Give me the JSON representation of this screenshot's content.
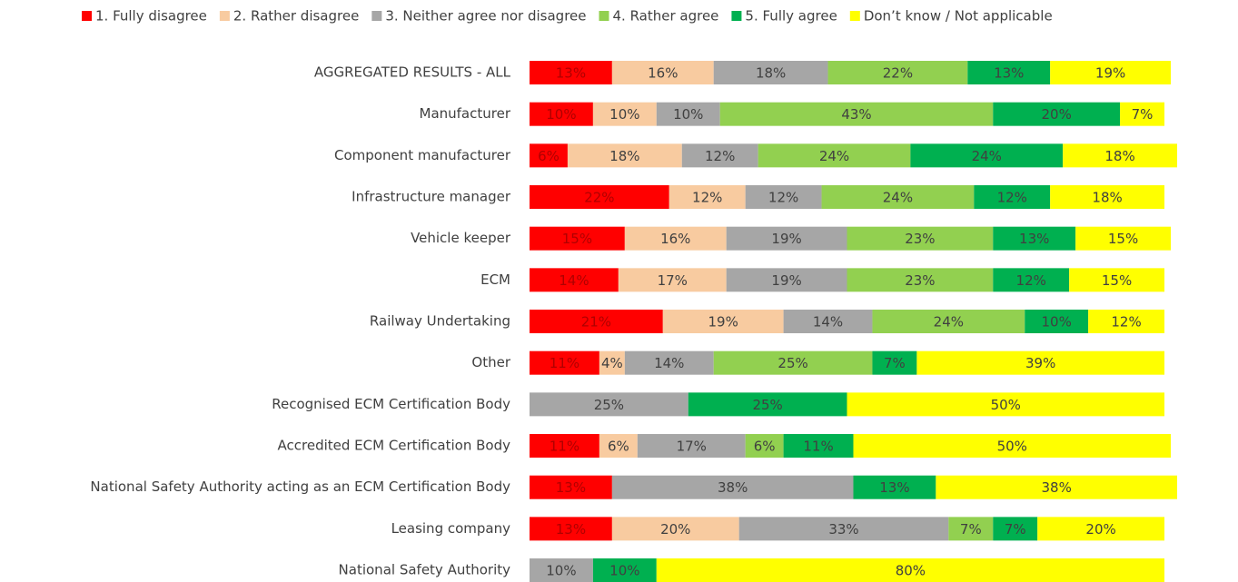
{
  "chart_data": {
    "type": "stacked-bar-horizontal",
    "categories": [
      "AGGREGATED RESULTS - ALL",
      "Manufacturer",
      "Component manufacturer",
      "Infrastructure manager",
      "Vehicle keeper",
      "ECM",
      "Railway Undertaking",
      "Other",
      "Recognised ECM Certification Body",
      "Accredited ECM Certification Body",
      "National Safety Authority acting as an ECM Certification Body",
      "Leasing company",
      "National Safety Authority"
    ],
    "xlim": [
      0,
      100
    ],
    "legend": "top",
    "series": [
      {
        "name": "1. Fully disagree",
        "color": "#ff0000",
        "label_color": "#b00000",
        "values": [
          13,
          10,
          6,
          22,
          15,
          14,
          21,
          11,
          null,
          11,
          13,
          13,
          null
        ],
        "value_labels": [
          "13%",
          "10%",
          "6%",
          "22%",
          "15%",
          "14%",
          "21%",
          "11%",
          null,
          "11%",
          "13%",
          "13%",
          null
        ]
      },
      {
        "name": "2. Rather disagree",
        "color": "#f8cba0",
        "label_color": "#404040",
        "values": [
          16,
          10,
          18,
          12,
          16,
          17,
          19,
          4,
          null,
          6,
          null,
          20,
          null
        ],
        "value_labels": [
          "16%",
          "10%",
          "18%",
          "12%",
          "16%",
          "17%",
          "19%",
          "4%",
          null,
          "6%",
          null,
          "20%",
          null
        ]
      },
      {
        "name": "3. Neither agree nor disagree",
        "color": "#a6a6a6",
        "label_color": "#404040",
        "values": [
          18,
          10,
          12,
          12,
          19,
          19,
          14,
          14,
          25,
          17,
          38,
          33,
          10
        ],
        "value_labels": [
          "18%",
          "10%",
          "12%",
          "12%",
          "19%",
          "19%",
          "14%",
          "14%",
          "25%",
          "17%",
          "38%",
          "33%",
          "10%"
        ]
      },
      {
        "name": "4. Rather agree",
        "color": "#92d050",
        "label_color": "#404040",
        "values": [
          22,
          43,
          24,
          24,
          23,
          23,
          24,
          25,
          null,
          6,
          null,
          7,
          null
        ],
        "value_labels": [
          "22%",
          "43%",
          "24%",
          "24%",
          "23%",
          "23%",
          "24%",
          "25%",
          null,
          "6%",
          null,
          "7%",
          null
        ]
      },
      {
        "name": "5. Fully agree",
        "color": "#00b050",
        "label_color": "#404040",
        "values": [
          13,
          20,
          24,
          12,
          13,
          12,
          10,
          7,
          25,
          11,
          13,
          7,
          10
        ],
        "value_labels": [
          "13%",
          "20%",
          "24%",
          "12%",
          "13%",
          "12%",
          "10%",
          "7%",
          "25%",
          "11%",
          "13%",
          "7%",
          "10%"
        ]
      },
      {
        "name": "Don’t know / Not applicable",
        "color": "#ffff00",
        "label_color": "#404040",
        "values": [
          19,
          7,
          18,
          18,
          15,
          15,
          12,
          39,
          50,
          50,
          38,
          20,
          80
        ],
        "value_labels": [
          "19%",
          "7%",
          "18%",
          "18%",
          "15%",
          "15%",
          "12%",
          "39%",
          "50%",
          "50%",
          "38%",
          "20%",
          "80%"
        ]
      }
    ]
  }
}
